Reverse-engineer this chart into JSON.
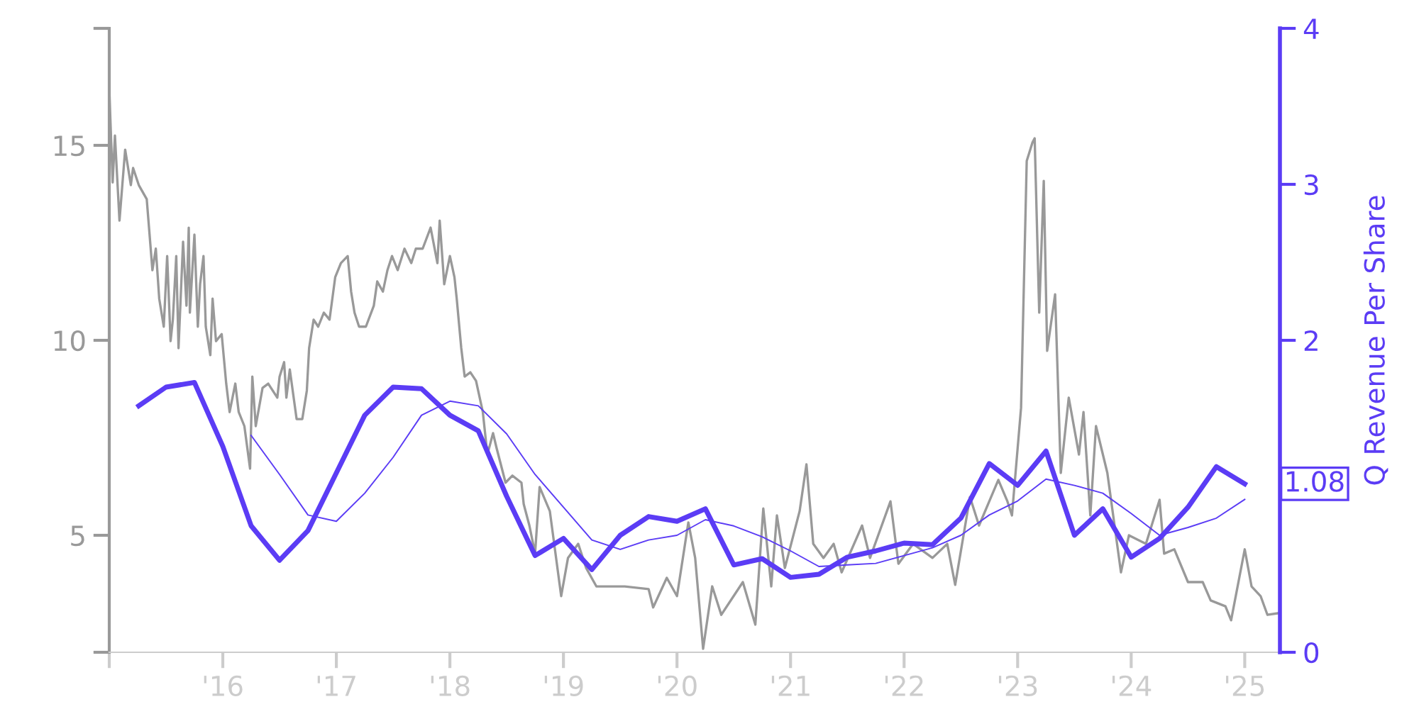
{
  "chart_data": {
    "type": "line",
    "y2label": "Q Revenue Per Share",
    "xlim": [
      2015.0,
      2025.31
    ],
    "xticks": [
      {
        "value": 2015,
        "label": null
      },
      {
        "value": 2016,
        "label": "'16"
      },
      {
        "value": 2017,
        "label": "'17"
      },
      {
        "value": 2018,
        "label": "'18"
      },
      {
        "value": 2019,
        "label": "'19"
      },
      {
        "value": 2020,
        "label": "'20"
      },
      {
        "value": 2021,
        "label": "'21"
      },
      {
        "value": 2022,
        "label": "'22"
      },
      {
        "value": 2023,
        "label": "'23"
      },
      {
        "value": 2024,
        "label": "'24"
      },
      {
        "value": 2025,
        "label": "'25"
      }
    ],
    "ylim": [
      2,
      18
    ],
    "yticks": [
      {
        "value": 2,
        "label": null
      },
      5,
      10,
      15,
      {
        "value": 18,
        "label": null
      }
    ],
    "y2lim": [
      0,
      4
    ],
    "y2ticks": [
      0,
      {
        "value": 1,
        "label": null
      },
      2,
      3,
      4
    ],
    "grid": false,
    "legend": false,
    "series": [
      {
        "color": "#999999",
        "axis": "y",
        "x": [
          2015.0,
          2015.03,
          2015.05,
          2015.09,
          2015.14,
          2015.19,
          2015.21,
          2015.26,
          2015.33,
          2015.38,
          2015.41,
          2015.44,
          2015.48,
          2015.51,
          2015.54,
          2015.56,
          2015.59,
          2015.61,
          2015.65,
          2015.68,
          2015.7,
          2015.71,
          2015.75,
          2015.78,
          2015.8,
          2015.83,
          2015.85,
          2015.89,
          2015.91,
          2015.94,
          2015.99,
          2016.03,
          2016.06,
          2016.11,
          2016.14,
          2016.19,
          2016.24,
          2016.26,
          2016.29,
          2016.35,
          2016.4,
          2016.48,
          2016.5,
          2016.54,
          2016.56,
          2016.59,
          2016.65,
          2016.7,
          2016.74,
          2016.76,
          2016.8,
          2016.84,
          2016.89,
          2016.94,
          2016.99,
          2017.04,
          2017.1,
          2017.13,
          2017.16,
          2017.2,
          2017.26,
          2017.33,
          2017.36,
          2017.41,
          2017.45,
          2017.49,
          2017.54,
          2017.6,
          2017.66,
          2017.7,
          2017.76,
          2017.83,
          2017.89,
          2017.91,
          2017.95,
          2018.0,
          2018.04,
          2018.06,
          2018.1,
          2018.13,
          2018.18,
          2018.23,
          2018.29,
          2018.33,
          2018.38,
          2018.41,
          2018.49,
          2018.55,
          2018.63,
          2018.65,
          2018.7,
          2018.75,
          2018.79,
          2018.88,
          2018.98,
          2019.04,
          2019.13,
          2019.2,
          2019.29,
          2019.54,
          2019.75,
          2019.79,
          2019.91,
          2020.0,
          2020.1,
          2020.16,
          2020.23,
          2020.31,
          2020.39,
          2020.58,
          2020.69,
          2020.76,
          2020.83,
          2020.88,
          2020.95,
          2021.08,
          2021.14,
          2021.2,
          2021.29,
          2021.38,
          2021.45,
          2021.63,
          2021.7,
          2021.88,
          2021.95,
          2022.08,
          2022.25,
          2022.38,
          2022.45,
          2022.58,
          2022.66,
          2022.75,
          2022.83,
          2022.91,
          2022.95,
          2023.03,
          2023.08,
          2023.13,
          2023.15,
          2023.19,
          2023.23,
          2023.26,
          2023.33,
          2023.38,
          2023.45,
          2023.54,
          2023.58,
          2023.64,
          2023.69,
          2023.79,
          2023.91,
          2023.98,
          2024.13,
          2024.25,
          2024.29,
          2024.38,
          2024.5,
          2024.63,
          2024.7,
          2024.83,
          2024.88,
          2025.0,
          2025.06,
          2025.14,
          2025.2,
          2025.29
        ],
        "values": [
          16.45,
          14.05,
          15.25,
          13.07,
          14.89,
          13.98,
          14.42,
          13.98,
          13.62,
          11.8,
          12.35,
          11.07,
          10.35,
          12.16,
          9.98,
          10.53,
          12.16,
          9.8,
          12.53,
          10.89,
          12.89,
          10.71,
          12.71,
          10.35,
          11.44,
          12.16,
          10.35,
          9.62,
          11.07,
          9.98,
          10.16,
          8.89,
          8.16,
          8.89,
          8.16,
          7.8,
          6.71,
          9.07,
          7.8,
          8.78,
          8.89,
          8.53,
          9.07,
          9.44,
          8.53,
          9.25,
          7.98,
          7.98,
          8.71,
          9.8,
          10.53,
          10.35,
          10.71,
          10.53,
          11.62,
          11.98,
          12.16,
          11.25,
          10.71,
          10.35,
          10.35,
          10.89,
          11.51,
          11.25,
          11.8,
          12.16,
          11.8,
          12.35,
          11.98,
          12.35,
          12.35,
          12.89,
          11.98,
          13.07,
          11.44,
          12.16,
          11.62,
          11.07,
          9.8,
          9.07,
          9.18,
          8.96,
          8.16,
          7.07,
          7.62,
          7.25,
          6.35,
          6.53,
          6.35,
          5.8,
          5.25,
          4.53,
          6.24,
          5.62,
          3.44,
          4.42,
          4.78,
          4.16,
          3.69,
          3.69,
          3.62,
          3.15,
          3.91,
          3.44,
          5.33,
          4.42,
          2.09,
          3.69,
          2.96,
          3.8,
          2.71,
          5.69,
          3.69,
          5.51,
          4.16,
          5.62,
          6.82,
          4.78,
          4.42,
          4.78,
          4.05,
          5.25,
          4.42,
          5.87,
          4.27,
          4.78,
          4.42,
          4.78,
          3.73,
          5.98,
          5.25,
          5.87,
          6.42,
          5.87,
          5.51,
          8.27,
          14.6,
          15.07,
          15.18,
          10.71,
          14.09,
          9.73,
          11.18,
          6.6,
          8.53,
          7.07,
          8.16,
          5.51,
          7.8,
          6.6,
          4.05,
          5.0,
          4.78,
          5.91,
          4.53,
          4.64,
          3.8,
          3.8,
          3.33,
          3.18,
          2.82,
          4.64,
          3.69,
          3.44,
          2.96,
          3.0
        ]
      },
      {
        "color": "#5b3cf5",
        "axis": "y2",
        "x": [
          2015.26,
          2015.5,
          2015.75,
          2016.0,
          2016.25,
          2016.5,
          2016.75,
          2017.0,
          2017.25,
          2017.5,
          2017.75,
          2018.0,
          2018.25,
          2018.5,
          2018.75,
          2019.0,
          2019.25,
          2019.5,
          2019.75,
          2020.0,
          2020.25,
          2020.5,
          2020.75,
          2021.0,
          2021.25,
          2021.5,
          2021.75,
          2022.0,
          2022.25,
          2022.5,
          2022.75,
          2023.0,
          2023.25,
          2023.5,
          2023.75,
          2024.0,
          2024.25,
          2024.5,
          2024.75,
          2025.0
        ],
        "values": [
          1.58,
          1.7,
          1.73,
          1.32,
          0.81,
          0.59,
          0.78,
          1.15,
          1.52,
          1.7,
          1.69,
          1.52,
          1.42,
          1.0,
          0.62,
          0.73,
          0.53,
          0.75,
          0.87,
          0.84,
          0.92,
          0.56,
          0.6,
          0.48,
          0.5,
          0.61,
          0.65,
          0.7,
          0.69,
          0.86,
          1.21,
          1.07,
          1.29,
          0.75,
          0.92,
          0.61,
          0.73,
          0.93,
          1.19,
          1.08
        ]
      },
      {
        "color": "#5b3cf5",
        "axis": "y2",
        "x": [
          2016.25,
          2016.5,
          2016.75,
          2017.0,
          2017.25,
          2017.5,
          2017.75,
          2018.0,
          2018.25,
          2018.5,
          2018.75,
          2019.0,
          2019.25,
          2019.5,
          2019.75,
          2020.0,
          2020.25,
          2020.5,
          2020.75,
          2021.0,
          2021.25,
          2021.5,
          2021.75,
          2022.0,
          2022.25,
          2022.5,
          2022.75,
          2023.0,
          2023.25,
          2023.5,
          2023.75,
          2024.0,
          2024.25,
          2024.5,
          2024.75,
          2025.0
        ],
        "values": [
          1.39,
          1.14,
          0.88,
          0.84,
          1.02,
          1.25,
          1.52,
          1.61,
          1.58,
          1.4,
          1.14,
          0.93,
          0.72,
          0.66,
          0.72,
          0.75,
          0.85,
          0.81,
          0.74,
          0.65,
          0.55,
          0.56,
          0.57,
          0.62,
          0.67,
          0.75,
          0.88,
          0.97,
          1.11,
          1.07,
          1.02,
          0.89,
          0.75,
          0.8,
          0.86,
          0.98
        ]
      }
    ],
    "annotations": [
      "1.08"
    ]
  }
}
